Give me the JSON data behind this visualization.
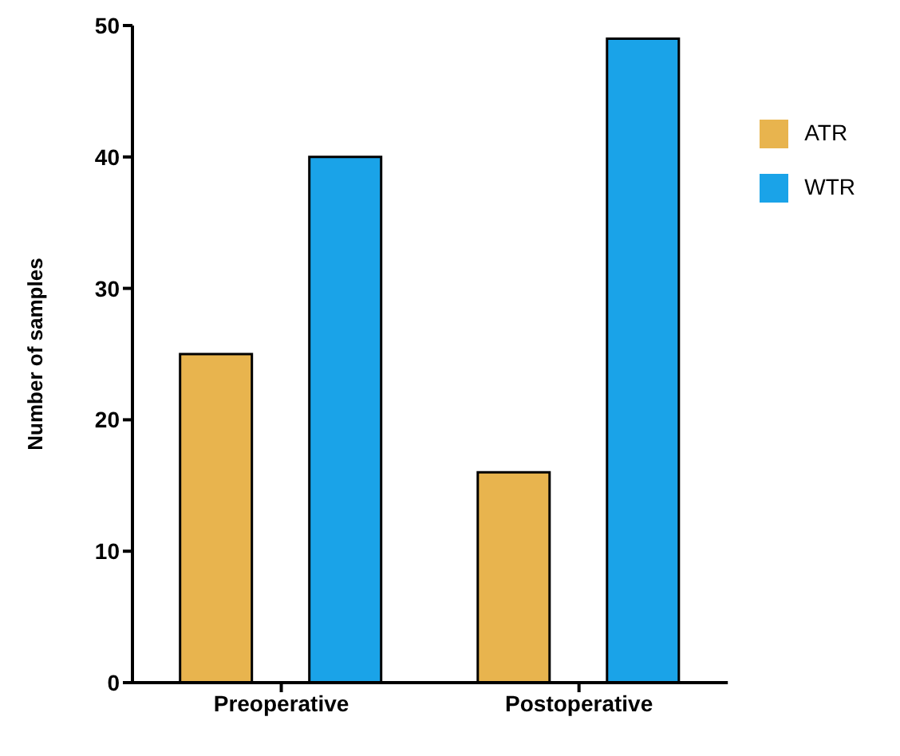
{
  "chart_data": {
    "type": "bar",
    "ylabel": "Number of samples",
    "categories": [
      "Preoperative",
      "Postoperative"
    ],
    "series": [
      {
        "name": "ATR",
        "color": "#e8b44e",
        "values": [
          25,
          16
        ]
      },
      {
        "name": "WTR",
        "color": "#1aa3e8",
        "values": [
          40,
          49
        ]
      }
    ],
    "ylim": [
      0,
      50
    ],
    "yticks": [
      0,
      10,
      20,
      30,
      40,
      50
    ],
    "grid": false,
    "legend": "top right"
  }
}
